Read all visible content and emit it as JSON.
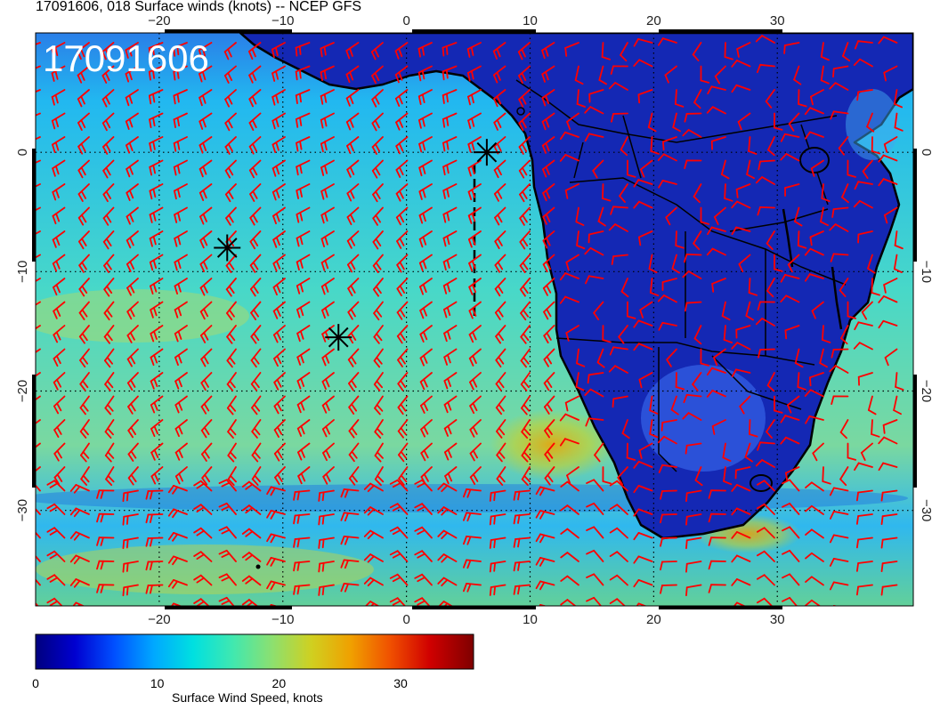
{
  "title": "17091606, 018 Surface winds (knots) -- NCEP GFS",
  "stamp": "17091606",
  "map": {
    "lon_range": [
      -30,
      41
    ],
    "lat_range": [
      -38,
      10
    ],
    "lon_ticks": [
      -20,
      -10,
      0,
      10,
      20,
      30
    ],
    "lat_ticks": [
      0,
      -10,
      -20,
      -30
    ]
  },
  "colorbar": {
    "label": "Surface Wind Speed, knots",
    "ticks": [
      0,
      10,
      20,
      30
    ],
    "range": [
      0,
      36
    ],
    "colors": [
      "#00007f",
      "#0000d0",
      "#0050ff",
      "#00a8ff",
      "#00e0e0",
      "#40e8b0",
      "#8ce070",
      "#d0d020",
      "#f0a000",
      "#f05000",
      "#d00000",
      "#7f0000"
    ]
  },
  "markers": [
    {
      "lon": 6.5,
      "lat": 0.0
    },
    {
      "lon": -14.5,
      "lat": -8.0
    },
    {
      "lon": -5.5,
      "lat": -15.5
    }
  ],
  "colors": {
    "barb": "#ff0000",
    "ocean_base": "#27c8ee",
    "land_base": "#1428b4",
    "coast": "#000000"
  }
}
